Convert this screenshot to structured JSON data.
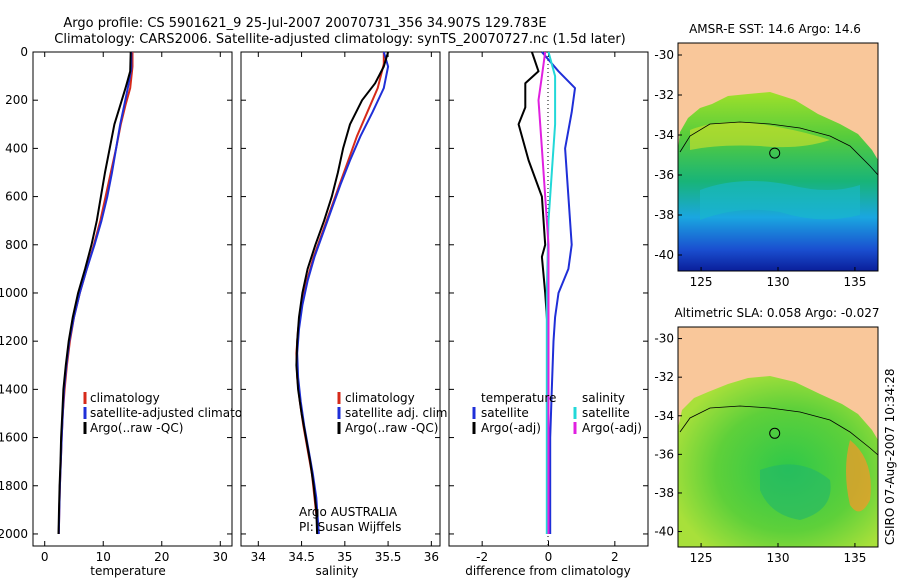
{
  "header": {
    "line1": "Argo profile: CS 5901621_9 25-Jul-2007 20070731_356 34.907S 129.783E",
    "line2": "Climatology: CARS2006. Satellite-adjusted climatology: synTS_20070727.nc (1.5d later)"
  },
  "colors": {
    "climatology": "#d62a1a",
    "satellite": "#1f2fd8",
    "argo": "#000000",
    "sal_sat": "#22d8d8",
    "sal_argo": "#e020e0",
    "land": "#f9c79a"
  },
  "chart_data": [
    {
      "id": "temperature",
      "type": "line",
      "xlabel": "temperature",
      "ylabel": "",
      "xlim": [
        -2,
        32
      ],
      "ylim": [
        2050,
        0
      ],
      "xticks": [
        0,
        10,
        20,
        30
      ],
      "yticks": [
        0,
        200,
        400,
        600,
        800,
        1000,
        1200,
        1400,
        1600,
        1800,
        2000
      ],
      "legend": [
        "climatology",
        "satellite-adjusted climatology",
        "Argo(..raw -QC)"
      ],
      "series": [
        {
          "name": "climatology",
          "color": "#d62a1a",
          "points": [
            [
              15.0,
              0
            ],
            [
              15.0,
              60
            ],
            [
              14.6,
              150
            ],
            [
              13.8,
              220
            ],
            [
              13.0,
              300
            ],
            [
              12.2,
              400
            ],
            [
              11.3,
              500
            ],
            [
              10.4,
              600
            ],
            [
              9.5,
              700
            ],
            [
              8.4,
              800
            ],
            [
              7.2,
              900
            ],
            [
              6.0,
              1000
            ],
            [
              5.0,
              1100
            ],
            [
              4.3,
              1200
            ],
            [
              3.8,
              1300
            ],
            [
              3.4,
              1400
            ],
            [
              3.1,
              1500
            ],
            [
              2.9,
              1600
            ],
            [
              2.75,
              1700
            ],
            [
              2.6,
              1800
            ],
            [
              2.5,
              1900
            ],
            [
              2.4,
              2000
            ]
          ]
        },
        {
          "name": "satellite",
          "color": "#1f2fd8",
          "points": [
            [
              14.8,
              0
            ],
            [
              14.8,
              70
            ],
            [
              14.2,
              150
            ],
            [
              13.6,
              220
            ],
            [
              12.9,
              300
            ],
            [
              12.2,
              400
            ],
            [
              11.5,
              500
            ],
            [
              10.7,
              600
            ],
            [
              9.7,
              700
            ],
            [
              8.5,
              800
            ],
            [
              7.2,
              900
            ],
            [
              6.0,
              1000
            ],
            [
              5.0,
              1100
            ],
            [
              4.2,
              1200
            ],
            [
              3.7,
              1300
            ],
            [
              3.3,
              1400
            ],
            [
              3.1,
              1500
            ],
            [
              2.9,
              1600
            ],
            [
              2.75,
              1700
            ],
            [
              2.6,
              1800
            ],
            [
              2.5,
              1900
            ],
            [
              2.4,
              2000
            ]
          ]
        },
        {
          "name": "Argo",
          "color": "#000000",
          "points": [
            [
              14.7,
              0
            ],
            [
              14.6,
              80
            ],
            [
              13.8,
              150
            ],
            [
              12.8,
              230
            ],
            [
              11.9,
              300
            ],
            [
              11.1,
              400
            ],
            [
              10.3,
              500
            ],
            [
              9.6,
              600
            ],
            [
              8.9,
              700
            ],
            [
              8.0,
              800
            ],
            [
              6.9,
              900
            ],
            [
              5.7,
              1000
            ],
            [
              4.8,
              1100
            ],
            [
              4.1,
              1200
            ],
            [
              3.6,
              1300
            ],
            [
              3.2,
              1400
            ],
            [
              3.0,
              1500
            ],
            [
              2.8,
              1600
            ],
            [
              2.7,
              1700
            ],
            [
              2.55,
              1800
            ],
            [
              2.45,
              1900
            ],
            [
              2.35,
              2000
            ]
          ]
        }
      ]
    },
    {
      "id": "salinity",
      "type": "line",
      "xlabel": "salinity",
      "ylabel": "",
      "xlim": [
        33.8,
        36.1
      ],
      "ylim": [
        2050,
        0
      ],
      "xticks": [
        34,
        34.5,
        35,
        35.5,
        36
      ],
      "legend": [
        "climatology",
        "satellite adj. clim.",
        "Argo(..raw -QC)"
      ],
      "annotations": [
        "Argo AUSTRALIA",
        "PI: Susan Wijffels"
      ],
      "series": [
        {
          "name": "climatology",
          "color": "#d62a1a",
          "points": [
            [
              35.45,
              0
            ],
            [
              35.45,
              50
            ],
            [
              35.38,
              150
            ],
            [
              35.26,
              250
            ],
            [
              35.14,
              350
            ],
            [
              35.04,
              450
            ],
            [
              34.94,
              550
            ],
            [
              34.84,
              650
            ],
            [
              34.74,
              750
            ],
            [
              34.64,
              850
            ],
            [
              34.56,
              950
            ],
            [
              34.5,
              1050
            ],
            [
              34.46,
              1150
            ],
            [
              34.44,
              1250
            ],
            [
              34.45,
              1350
            ],
            [
              34.48,
              1450
            ],
            [
              34.52,
              1550
            ],
            [
              34.57,
              1650
            ],
            [
              34.62,
              1750
            ],
            [
              34.65,
              1850
            ],
            [
              34.68,
              1950
            ],
            [
              34.69,
              2000
            ]
          ]
        },
        {
          "name": "satellite",
          "color": "#1f2fd8",
          "points": [
            [
              35.45,
              0
            ],
            [
              35.5,
              60
            ],
            [
              35.45,
              150
            ],
            [
              35.32,
              250
            ],
            [
              35.18,
              350
            ],
            [
              35.06,
              450
            ],
            [
              34.95,
              550
            ],
            [
              34.85,
              650
            ],
            [
              34.75,
              750
            ],
            [
              34.65,
              850
            ],
            [
              34.57,
              950
            ],
            [
              34.51,
              1050
            ],
            [
              34.47,
              1150
            ],
            [
              34.45,
              1250
            ],
            [
              34.46,
              1350
            ],
            [
              34.49,
              1450
            ],
            [
              34.53,
              1550
            ],
            [
              34.58,
              1650
            ],
            [
              34.63,
              1750
            ],
            [
              34.67,
              1850
            ],
            [
              34.69,
              1950
            ],
            [
              34.7,
              2000
            ]
          ]
        },
        {
          "name": "Argo",
          "color": "#000000",
          "points": [
            [
              35.5,
              0
            ],
            [
              35.45,
              60
            ],
            [
              35.35,
              130
            ],
            [
              35.2,
              200
            ],
            [
              35.06,
              300
            ],
            [
              34.98,
              400
            ],
            [
              34.92,
              500
            ],
            [
              34.85,
              600
            ],
            [
              34.76,
              700
            ],
            [
              34.66,
              800
            ],
            [
              34.57,
              900
            ],
            [
              34.51,
              1000
            ],
            [
              34.47,
              1100
            ],
            [
              34.45,
              1200
            ],
            [
              34.44,
              1300
            ],
            [
              34.46,
              1400
            ],
            [
              34.5,
              1500
            ],
            [
              34.55,
              1600
            ],
            [
              34.6,
              1700
            ],
            [
              34.64,
              1800
            ],
            [
              34.67,
              1900
            ],
            [
              34.68,
              2000
            ]
          ]
        }
      ]
    },
    {
      "id": "difference",
      "type": "line",
      "xlabel": "difference from climatology",
      "ylabel": "",
      "xlim": [
        -3,
        3
      ],
      "ylim": [
        2050,
        0
      ],
      "xticks": [
        -2,
        0,
        2
      ],
      "legend_left_title": "temperature",
      "legend_right_title": "salinity",
      "legend": [
        "satellite",
        "Argo(-adj)",
        "satellite",
        "Argo(-adj)"
      ],
      "series": [
        {
          "name": "temperature satellite",
          "color": "#1f2fd8",
          "points": [
            [
              -0.2,
              0
            ],
            [
              0.3,
              80
            ],
            [
              0.8,
              150
            ],
            [
              0.7,
              250
            ],
            [
              0.5,
              400
            ],
            [
              0.6,
              600
            ],
            [
              0.7,
              800
            ],
            [
              0.6,
              900
            ],
            [
              0.3,
              1000
            ],
            [
              0.2,
              1100
            ],
            [
              0.15,
              1200
            ],
            [
              0.1,
              1400
            ],
            [
              0.05,
              1600
            ],
            [
              0.05,
              1800
            ],
            [
              0.05,
              2000
            ]
          ]
        },
        {
          "name": "temperature Argo",
          "color": "#000000",
          "points": [
            [
              -0.5,
              0
            ],
            [
              -0.3,
              80
            ],
            [
              -0.7,
              130
            ],
            [
              -0.7,
              230
            ],
            [
              -0.9,
              300
            ],
            [
              -0.6,
              450
            ],
            [
              -0.2,
              600
            ],
            [
              -0.1,
              800
            ],
            [
              -0.2,
              850
            ],
            [
              -0.1,
              1000
            ],
            [
              0.0,
              1200
            ],
            [
              0.0,
              1500
            ],
            [
              0.0,
              2000
            ]
          ]
        },
        {
          "name": "salinity satellite",
          "color": "#22d8d8",
          "points": [
            [
              0.0,
              0
            ],
            [
              0.2,
              100
            ],
            [
              0.2,
              300
            ],
            [
              0.1,
              500
            ],
            [
              0.0,
              700
            ],
            [
              -0.05,
              1000
            ],
            [
              -0.05,
              1500
            ],
            [
              -0.05,
              2000
            ]
          ]
        },
        {
          "name": "salinity Argo",
          "color": "#e020e0",
          "points": [
            [
              -0.1,
              0
            ],
            [
              -0.2,
              100
            ],
            [
              -0.3,
              200
            ],
            [
              -0.2,
              400
            ],
            [
              -0.1,
              600
            ],
            [
              0.0,
              800
            ],
            [
              0.0,
              1200
            ],
            [
              0.0,
              1600
            ],
            [
              0.0,
              2000
            ]
          ]
        }
      ]
    }
  ],
  "maps": [
    {
      "id": "sst",
      "title": "AMSR-E SST: 14.6 Argo: 14.6",
      "lon_ticks": [
        125,
        130,
        135
      ],
      "lat_ticks": [
        -30,
        -32,
        -34,
        -36,
        -38,
        -40
      ],
      "lon_range": [
        123.5,
        136.5
      ],
      "lat_range": [
        -40.8,
        -29.4
      ],
      "argo_position": {
        "lon": 129.783,
        "lat": -34.907
      }
    },
    {
      "id": "sla",
      "title": "Altimetric SLA: 0.058 Argo: -0.027",
      "lon_ticks": [
        125,
        130,
        135
      ],
      "lat_ticks": [
        -30,
        -32,
        -34,
        -36,
        -38,
        -40
      ],
      "lon_range": [
        123.5,
        136.5
      ],
      "lat_range": [
        -40.8,
        -29.4
      ],
      "argo_position": {
        "lon": 129.783,
        "lat": -34.907
      }
    }
  ],
  "footer_stamp": "CSIRO 07-Aug-2007 10:34:28"
}
